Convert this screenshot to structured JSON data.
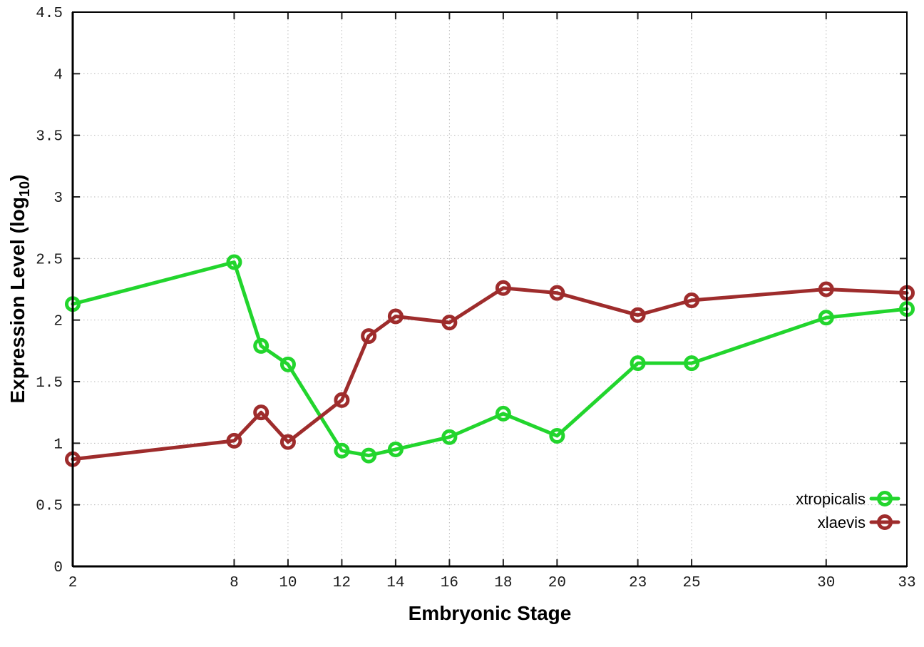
{
  "labels": {
    "x_axis": "Embryonic Stage",
    "y_axis_pre": "Expression Level (log",
    "y_axis_sub": "10",
    "y_axis_post": ")"
  },
  "colors": {
    "background": "#ffffff",
    "grid": "#b9b9b9",
    "axis": "#000000",
    "xtropicalis": "#22d52d",
    "xlaevis": "#9e2c2c"
  },
  "chart_data": {
    "type": "line",
    "title": "",
    "xlabel": "Embryonic Stage",
    "ylabel": "Expression Level (log10)",
    "xlim": [
      2,
      33
    ],
    "ylim": [
      0,
      4.5
    ],
    "xticks": [
      2,
      8,
      10,
      12,
      14,
      16,
      18,
      20,
      23,
      25,
      30,
      33
    ],
    "yticks": [
      0,
      0.5,
      1,
      1.5,
      2,
      2.5,
      3,
      3.5,
      4,
      4.5
    ],
    "grid": true,
    "legend_position": "bottom-right-inside",
    "marker": "open-circle",
    "x": [
      2,
      8,
      9,
      10,
      12,
      13,
      14,
      16,
      18,
      20,
      23,
      25,
      30,
      33
    ],
    "series": [
      {
        "name": "xtropicalis",
        "color": "#22d52d",
        "values": [
          2.13,
          2.47,
          1.79,
          1.64,
          0.94,
          0.9,
          0.95,
          1.05,
          1.24,
          1.06,
          1.65,
          1.65,
          2.02,
          2.09
        ]
      },
      {
        "name": "xlaevis",
        "color": "#9e2c2c",
        "values": [
          0.87,
          1.02,
          1.25,
          1.01,
          1.35,
          1.87,
          2.03,
          1.98,
          2.26,
          2.22,
          2.04,
          2.16,
          2.25,
          2.22
        ]
      }
    ]
  }
}
